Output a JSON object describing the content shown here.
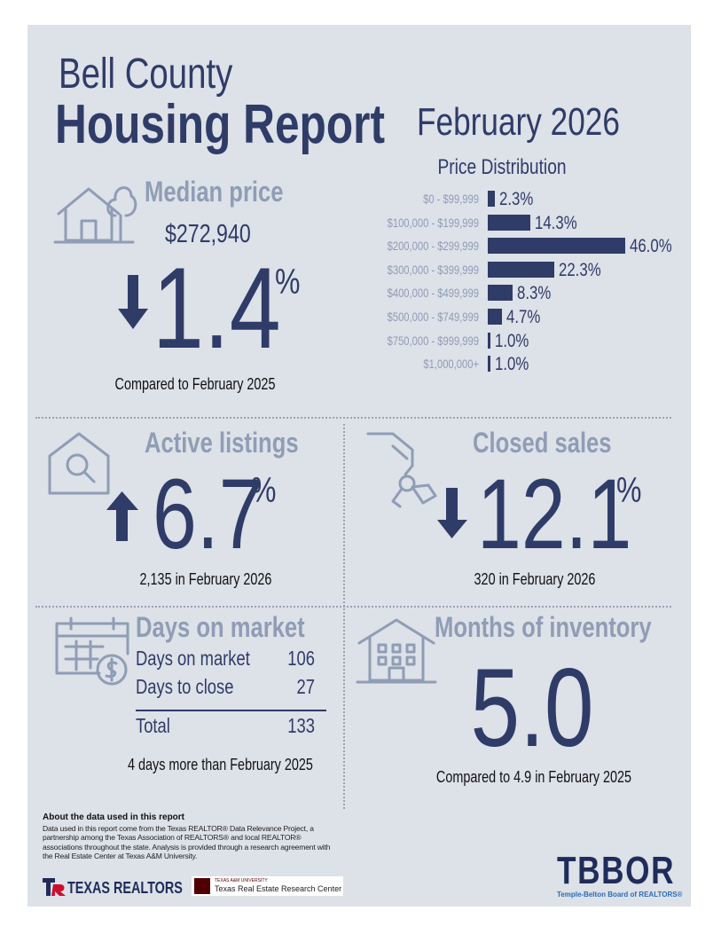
{
  "header": {
    "county": "Bell County",
    "title": "Housing Report",
    "period": "February 2026"
  },
  "price_distribution": {
    "title": "Price Distribution",
    "categories": [
      "$0 - $99,999",
      "$100,000 - $199,999",
      "$200,000 - $299,999",
      "$300,000 - $399,999",
      "$400,000 - $499,999",
      "$500,000 - $749,999",
      "$750,000 - $999,999",
      "$1,000,000+"
    ],
    "values": [
      2.3,
      14.3,
      46.0,
      22.3,
      8.3,
      4.7,
      1.0,
      1.0
    ],
    "value_labels": [
      "2.3%",
      "14.3%",
      "46.0%",
      "22.3%",
      "8.3%",
      "4.7%",
      "1.0%",
      "1.0%"
    ],
    "color": "#2f3c68"
  },
  "median_price": {
    "title": "Median price",
    "value": "$272,940",
    "change": "1.4",
    "unit": "%",
    "note": "Compared to February 2025"
  },
  "active_listings": {
    "title": "Active listings",
    "change": "6.7",
    "unit": "%",
    "note": "2,135 in February 2026"
  },
  "closed_sales": {
    "title": "Closed sales",
    "change": "12.1",
    "unit": "%",
    "note": "320 in February 2026"
  },
  "days_on_market": {
    "title": "Days on market",
    "rows": [
      [
        "Days on market",
        "106"
      ],
      [
        "Days to close",
        "27"
      ]
    ],
    "total": [
      "Total",
      "133"
    ],
    "note": "4 days more than February 2025"
  },
  "months_inventory": {
    "title": "Months of inventory",
    "value": "5.0",
    "note": "Compared to 4.9 in February 2025"
  },
  "footer": {
    "heading": "About the data used in this report",
    "text": "Data used in this report come from the Texas REALTOR® Data Relevance Project, a partnership among the Texas Association of REALTORS® and local REALTOR® associations throughout the state. Analysis is provided through a research agreement with the Real Estate Center at Texas A&M University.",
    "logo_left": "TEXAS REALTORS",
    "tamu_small": "TEXAS A&M UNIVERSITY",
    "tamu": "Texas Real Estate Research Center",
    "logo_right": "TBBOR",
    "logo_right_sub": "Temple-Belton Board of REALTORS®"
  }
}
